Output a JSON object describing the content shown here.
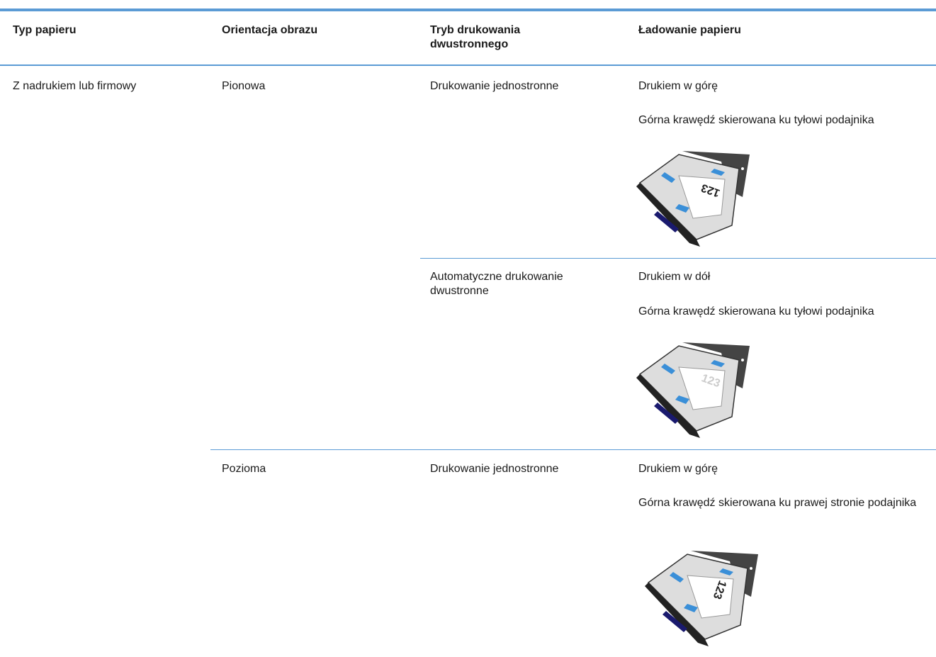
{
  "table": {
    "headers": [
      "Typ papieru",
      "Orientacja obrazu",
      "Tryb drukowania dwustronnego",
      "Ładowanie papieru"
    ],
    "rows": [
      {
        "paper_type": "Z nadrukiem lub firmowy",
        "orientation": "Pionowa",
        "duplex_mode": "Drukowanie jednostronne",
        "loading": [
          "Drukiem w górę",
          "Górna krawędź skierowana ku tyłowi podajnika"
        ]
      },
      {
        "duplex_mode": "Automatyczne drukowanie dwustronne",
        "loading": [
          "Drukiem w dół",
          "Górna krawędź skierowana ku tyłowi podajnika"
        ]
      },
      {
        "orientation": "Pozioma",
        "duplex_mode": "Drukowanie jednostronne",
        "loading": [
          "Drukiem w górę",
          "Górna krawędź skierowana ku prawej stronie podajnika"
        ]
      }
    ],
    "tray_label": "123"
  }
}
